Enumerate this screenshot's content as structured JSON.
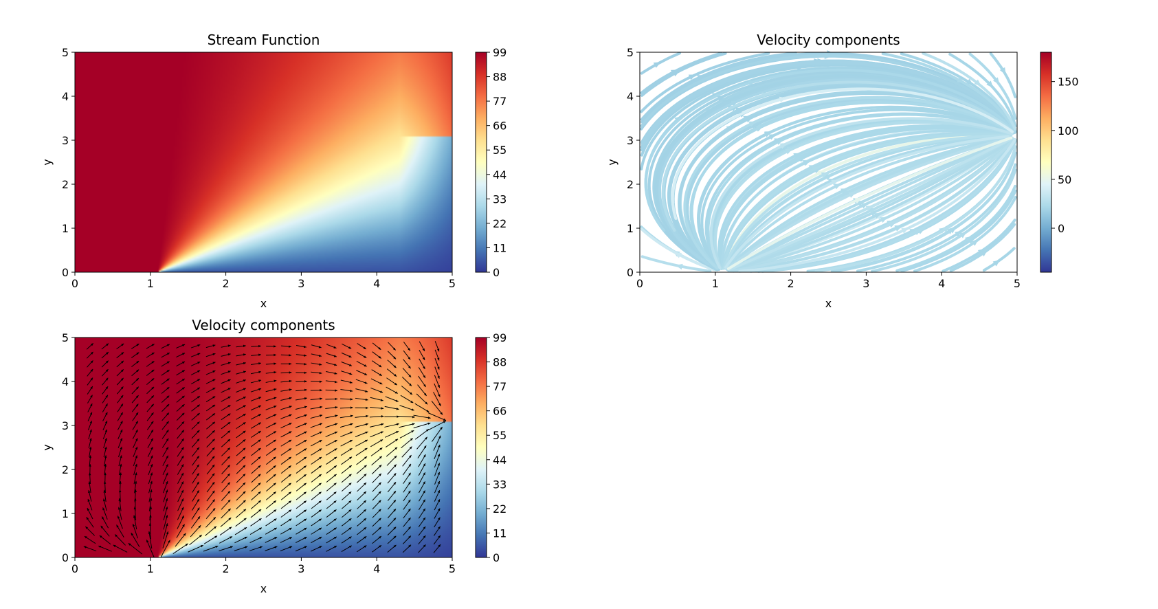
{
  "figure": {
    "colormap": [
      "#313695",
      "#4575b4",
      "#74add1",
      "#abd9e9",
      "#e0f3f8",
      "#ffffbf",
      "#fee090",
      "#fdae61",
      "#f46d43",
      "#d73027",
      "#a50026"
    ]
  },
  "chart_data": [
    {
      "type": "heatmap",
      "title": "Stream Function",
      "xlabel": "x",
      "ylabel": "y",
      "xlim": [
        0,
        5
      ],
      "ylim": [
        0,
        5
      ],
      "xticks": [
        "0",
        "1",
        "2",
        "3",
        "4",
        "5"
      ],
      "yticks": [
        "0",
        "1",
        "2",
        "3",
        "4",
        "5"
      ],
      "colorbar": {
        "range": [
          0,
          99
        ],
        "ticks": [
          "0",
          "11",
          "22",
          "33",
          "44",
          "55",
          "66",
          "77",
          "88",
          "99"
        ],
        "cmap": "RdYlBu_r"
      },
      "field": "stream function: ~99 upper-left, ~0 lower-right, 50% contour from (1.1, 0) to (5, 3.1)",
      "source_x": 1.1,
      "sink": [
        5,
        3.1
      ],
      "grid": false
    },
    {
      "type": "streamplot",
      "title": "Velocity components",
      "xlabel": "x",
      "ylabel": "y",
      "xlim": [
        0,
        5
      ],
      "ylim": [
        0,
        5
      ],
      "xticks": [
        "0",
        "1",
        "2",
        "3",
        "4",
        "5"
      ],
      "yticks": [
        "0",
        "1",
        "2",
        "3",
        "4",
        "5"
      ],
      "colorbar": {
        "range": [
          -45,
          180
        ],
        "ticks": [
          "0",
          "50",
          "100",
          "150"
        ],
        "cmap": "RdYlBu_r"
      },
      "grid": false
    },
    {
      "type": "quiver",
      "title": "Velocity components",
      "xlabel": "x",
      "ylabel": "y",
      "xlim": [
        0,
        5
      ],
      "ylim": [
        0,
        5
      ],
      "xticks": [
        "0",
        "1",
        "2",
        "3",
        "4",
        "5"
      ],
      "yticks": [
        "0",
        "1",
        "2",
        "3",
        "4",
        "5"
      ],
      "colorbar": {
        "range": [
          0,
          99
        ],
        "ticks": [
          "0",
          "11",
          "22",
          "33",
          "44",
          "55",
          "66",
          "77",
          "88",
          "99"
        ],
        "cmap": "RdYlBu_r"
      },
      "grid": false
    }
  ]
}
